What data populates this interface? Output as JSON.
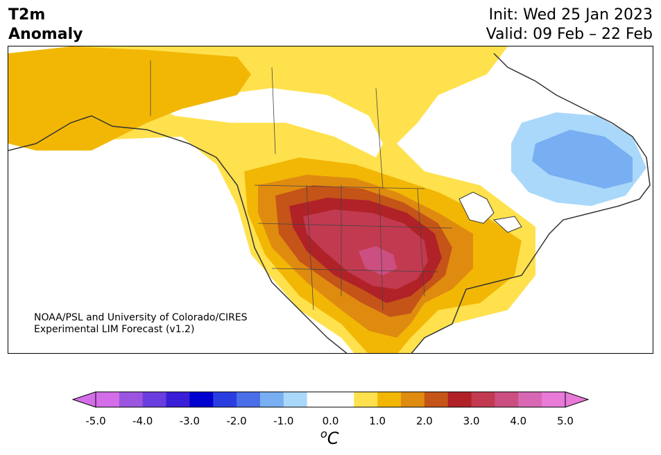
{
  "header": {
    "variable": "T2m",
    "subtitle": "Anomaly",
    "init": "Init: Wed 25 Jan 2023",
    "valid": "Valid: 09 Feb – 22 Feb"
  },
  "credit": {
    "line1": "NOAA/PSL and University of Colorado/CIRES",
    "line2": "Experimental LIM Forecast (v1.2)"
  },
  "colorbar": {
    "unit_label": "C",
    "unit_sup": "o",
    "ticks": [
      "-5.0",
      "-4.0",
      "-3.0",
      "-2.0",
      "-1.0",
      "0.0",
      "1.0",
      "2.0",
      "3.0",
      "4.0",
      "5.0"
    ],
    "colors": [
      "#d46ee8",
      "#9b55e0",
      "#6a3de0",
      "#3a1dd6",
      "#0000d0",
      "#2a3de0",
      "#4a6ee8",
      "#78aef2",
      "#aad8fa",
      "#ffffff",
      "#ffffff",
      "#ffe14d",
      "#f2b705",
      "#df8b10",
      "#c55418",
      "#b02227",
      "#c23a50",
      "#cc4f82",
      "#d868b4",
      "#e87ad8"
    ],
    "under_color": "#d46ee8",
    "over_color": "#e87ad8"
  },
  "map_colors": {
    "land_outline": "#333333",
    "state_lines": "#444444"
  }
}
